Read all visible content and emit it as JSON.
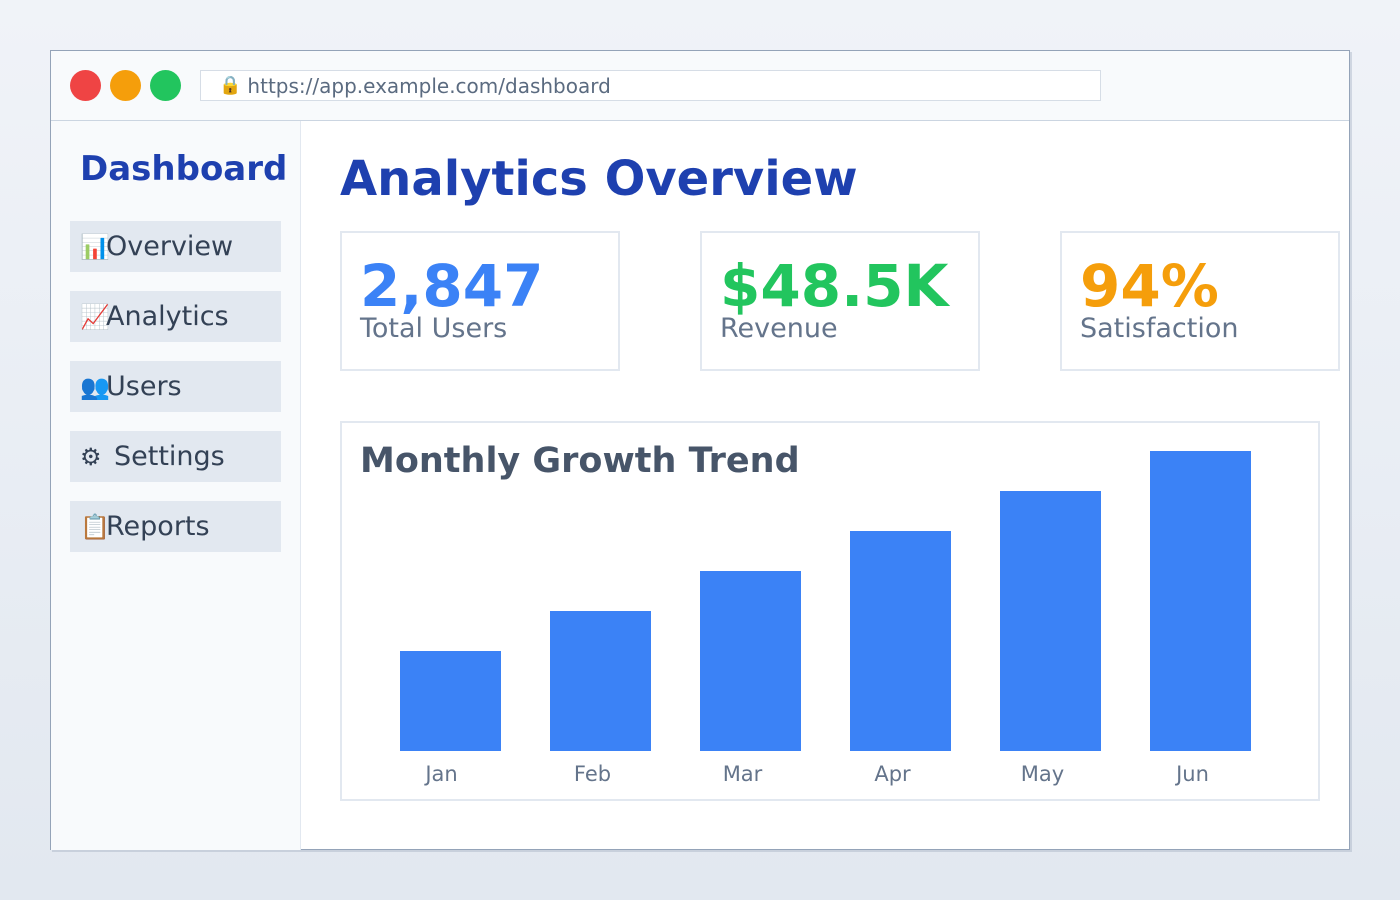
{
  "browser": {
    "url": "https://app.example.com/dashboard",
    "url_icon": "lock-icon",
    "window_controls": {
      "close_color": "#ef4444",
      "minimize_color": "#f59e0b",
      "maximize_color": "#22c55e"
    }
  },
  "sidebar": {
    "title": "Dashboard",
    "items": [
      {
        "icon": "📊",
        "icon_name": "bar-chart-icon",
        "label": "Overview"
      },
      {
        "icon": "📈",
        "icon_name": "trend-chart-icon",
        "label": "Analytics"
      },
      {
        "icon": "👥",
        "icon_name": "users-icon",
        "label": "Users"
      },
      {
        "icon": "⚙",
        "icon_name": "gear-icon",
        "label": "Settings"
      },
      {
        "icon": "📋",
        "icon_name": "clipboard-icon",
        "label": "Reports"
      }
    ]
  },
  "main": {
    "title": "Analytics Overview",
    "stats": [
      {
        "value": "2,847",
        "label": "Total Users",
        "color": "#3b82f6"
      },
      {
        "value": "$48.5K",
        "label": "Revenue",
        "color": "#22c55e"
      },
      {
        "value": "94%",
        "label": "Satisfaction",
        "color": "#f59e0b"
      }
    ]
  },
  "chart_data": {
    "type": "bar",
    "title": "Monthly Growth Trend",
    "categories": [
      "Jan",
      "Feb",
      "Mar",
      "Apr",
      "May",
      "Jun"
    ],
    "values": [
      100,
      140,
      180,
      220,
      260,
      300
    ],
    "xlabel": "",
    "ylabel": "",
    "ylim": [
      0,
      300
    ],
    "bar_color": "#3b82f6",
    "grid": false
  }
}
